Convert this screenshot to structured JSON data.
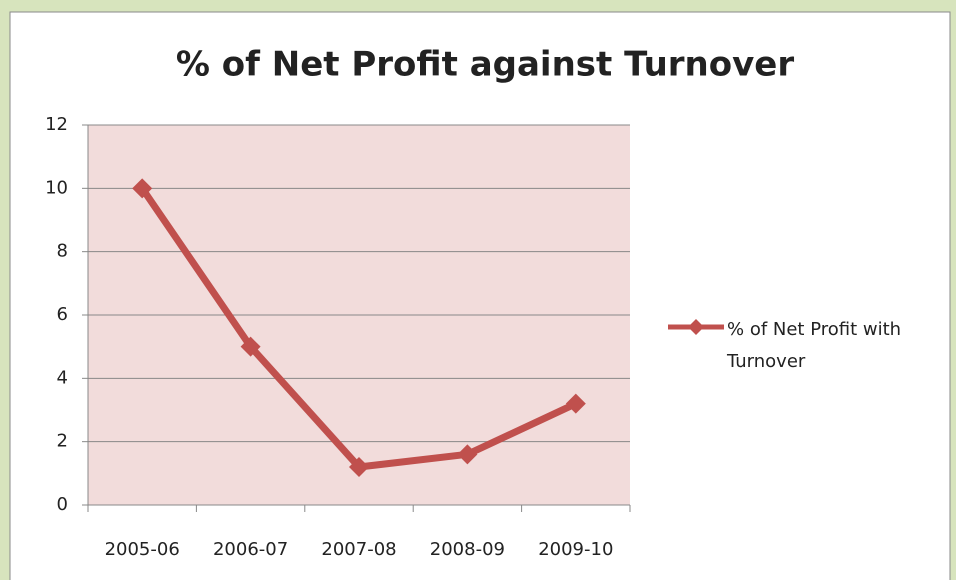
{
  "chart_data": {
    "type": "line",
    "title": "% of Net Profit against Turnover",
    "categories": [
      "2005-06",
      "2006-07",
      "2007-08",
      "2008-09",
      "2009-10"
    ],
    "series": [
      {
        "name": "% of Net Profit with Turnover",
        "color": "#c0504d",
        "values": [
          10,
          5,
          1.2,
          1.6,
          3.2
        ]
      }
    ],
    "ylim": [
      0,
      12
    ],
    "yticks": [
      0,
      2,
      4,
      6,
      8,
      10,
      12
    ],
    "grid": true,
    "legend": "right"
  }
}
